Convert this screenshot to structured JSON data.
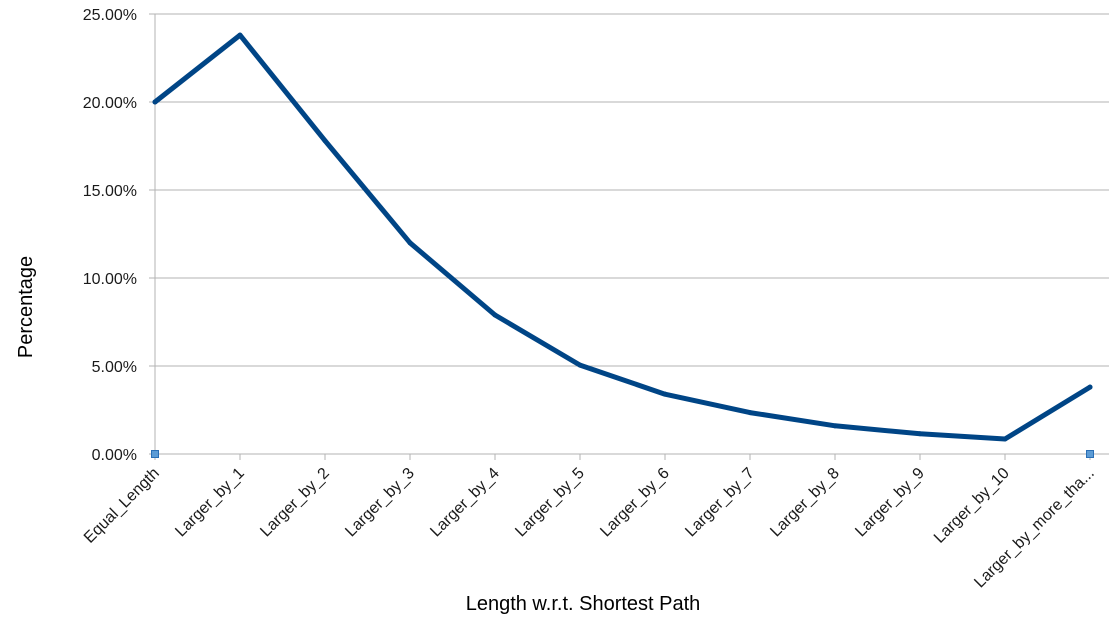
{
  "chart_data": {
    "type": "line",
    "title": "",
    "xlabel": "Length w.r.t. Shortest Path",
    "ylabel": "Percentage",
    "categories": [
      "Equal_Length",
      "Larger_by_1",
      "Larger_by_2",
      "Larger_by_3",
      "Larger_by_4",
      "Larger_by_5",
      "Larger_by_6",
      "Larger_by_7",
      "Larger_by_8",
      "Larger_by_9",
      "Larger_by_10",
      "Larger_by_more_tha..."
    ],
    "series": [
      {
        "values": [
          20.0,
          23.8,
          17.8,
          12.0,
          7.9,
          5.05,
          3.4,
          2.35,
          1.6,
          1.15,
          0.85,
          3.8
        ],
        "color": "#004586"
      }
    ],
    "ylim": [
      0,
      25
    ],
    "yticks": [
      "0.00%",
      "5.00%",
      "10.00%",
      "15.00%",
      "20.00%",
      "25.00%"
    ],
    "grid": true,
    "legend": "none"
  }
}
